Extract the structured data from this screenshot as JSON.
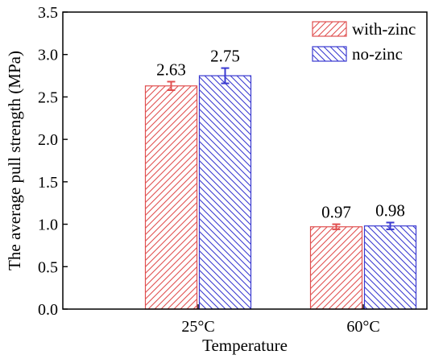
{
  "chart_data": {
    "type": "bar",
    "title": "",
    "xlabel": "Temperature",
    "ylabel": "The average pull strength (MPa)",
    "categories": [
      "25°C",
      "60°C"
    ],
    "ylim": [
      0,
      3.5
    ],
    "yticks": [
      "0.0",
      "0.5",
      "1.0",
      "1.5",
      "2.0",
      "2.5",
      "3.0",
      "3.5"
    ],
    "grid": false,
    "legend_position": "top-right",
    "series": [
      {
        "name": "with-zinc",
        "values": [
          2.63,
          0.97
        ],
        "errors": [
          0.05,
          0.03
        ],
        "labels": [
          "2.63",
          "0.97"
        ],
        "color": "#e05050"
      },
      {
        "name": "no-zinc",
        "values": [
          2.75,
          0.98
        ],
        "errors": [
          0.09,
          0.04
        ],
        "labels": [
          "2.75",
          "0.98"
        ],
        "color": "#3a3ad0"
      }
    ]
  }
}
